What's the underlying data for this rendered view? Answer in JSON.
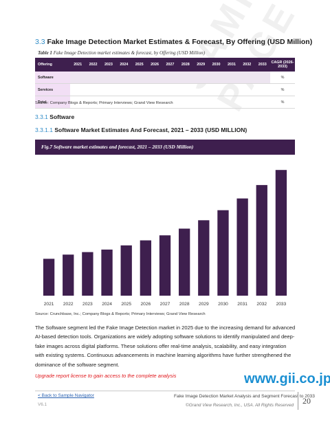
{
  "section": {
    "number": "3.3",
    "title": "Fake Image Detection Market Estimates & Forecast, By Offering (USD Million)"
  },
  "table": {
    "caption_label": "Table 1",
    "caption_text": "Fake Image Detection market estimates & forecast, by Offering (USD Million)",
    "headers": [
      "Offering",
      "2021",
      "2022",
      "2023",
      "2024",
      "2025",
      "2026",
      "2027",
      "2028",
      "2029",
      "2030",
      "2031",
      "2032",
      "2033",
      "CAGR (2026-2033)"
    ],
    "rows": [
      {
        "label": "Software",
        "cagr": "%"
      },
      {
        "label": "Services",
        "cagr": "%"
      },
      {
        "label": "Total",
        "cagr": "%"
      }
    ],
    "source": "Source: Company Blogs & Reports; Primary Interviews; Grand View Research"
  },
  "subsection": {
    "number": "3.3.1",
    "title": "Software"
  },
  "subsubsection": {
    "number": "3.3.1.1",
    "title": "Software Market Estimates And Forecast, 2021 – 2033 (USD MILLION)"
  },
  "figure": {
    "title": "Fig.7  Software market estimates and forecast, 2021 – 2033 (USD Million)",
    "source": "Source: Crunchbase, Inc.; Company Blogs & Reports; Primary Interviews; Grand View Research"
  },
  "chart_data": {
    "type": "bar",
    "categories": [
      "2021",
      "2022",
      "2023",
      "2024",
      "2025",
      "2026",
      "2027",
      "2028",
      "2029",
      "2030",
      "2031",
      "2032",
      "2033"
    ],
    "values": [
      22,
      24.5,
      26,
      27.5,
      30,
      33,
      36,
      40,
      45,
      51,
      58,
      66,
      75
    ],
    "ylim": [
      0,
      80
    ],
    "bar_color": "#3e1f4e",
    "grid": false
  },
  "paragraph": "The Software segment led the Fake Image Detection market in 2025 due to the increasing demand for advanced AI-based detection tools. Organizations are widely adopting software solutions to identify manipulated and deep-fake images across digital platforms. These solutions offer real-time analysis, scalability, and easy integration with existing systems. Continuous advancements in machine learning algorithms have further strengthened the dominance of the software segment.",
  "upgrade_text": "Upgrade report license to gain access to the complete analysis",
  "watermark_brand": "www.gii.co.jp",
  "diagonal_watermark": "SAMPLE PAGE",
  "footer": {
    "back_link": "< Back to Sample Navigator",
    "version": "V6.1",
    "title": "Fake Image Detection Market Analysis and Segment Forecast to 2033",
    "copyright": "©Grand View Research, Inc., USA. All Rights Reserved",
    "page": "20"
  }
}
